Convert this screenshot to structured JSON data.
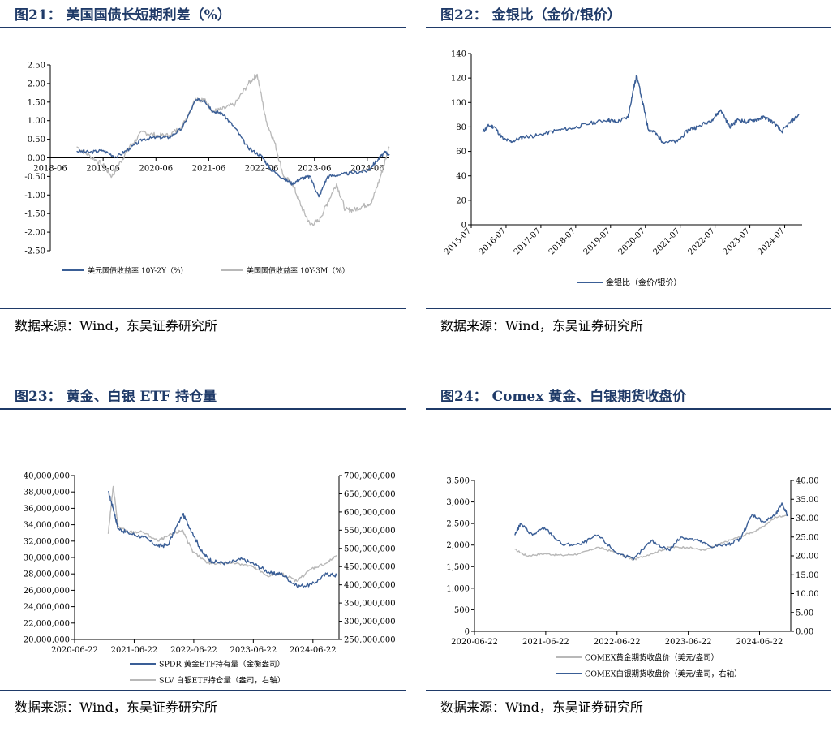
{
  "colors": {
    "primary": "#3a5e96",
    "secondary": "#b8b8b8",
    "title": "#1f3a68"
  },
  "panels": [
    {
      "title": "图21：  美国国债长短期利差（%）",
      "source": "数据来源：Wind，东吴证券研究所"
    },
    {
      "title": "图22：  金银比（金价/银价）",
      "source": "数据来源：Wind，东吴证券研究所"
    },
    {
      "title": "图23：  黄金、白银 ETF 持仓量",
      "source": "数据来源：Wind，东吴证券研究所"
    },
    {
      "title": "图24：  Comex 黄金、白银期货收盘价",
      "source": "数据来源：Wind，东吴证券研究所"
    }
  ],
  "chart_data": [
    {
      "type": "line",
      "title": "美国国债长短期利差（%）",
      "x_ticks": [
        "2018-06",
        "2019-06",
        "2020-06",
        "2021-06",
        "2022-06",
        "2023-06",
        "2024-06"
      ],
      "y_ticks": [
        "2.50",
        "2.00",
        "1.50",
        "1.00",
        "0.50",
        "0.00",
        "-0.50",
        "-1.00",
        "-1.50",
        "-2.00",
        "-2.50"
      ],
      "ylim": [
        -2.5,
        2.5
      ],
      "xlim": [
        "2018-06",
        "2024-11"
      ],
      "legend_position": "bottom",
      "series": [
        {
          "name": "美元国债收益率 10Y-2Y（%）",
          "color": "#3a5e96",
          "x": [
            "2018-12",
            "2019-03",
            "2019-06",
            "2019-09",
            "2019-12",
            "2020-03",
            "2020-06",
            "2020-09",
            "2020-12",
            "2021-03",
            "2021-05",
            "2021-07",
            "2021-09",
            "2021-12",
            "2022-03",
            "2022-06",
            "2022-08",
            "2022-11",
            "2023-01",
            "2023-03",
            "2023-05",
            "2023-07",
            "2023-09",
            "2023-12",
            "2024-03",
            "2024-06",
            "2024-08",
            "2024-10",
            "2024-11"
          ],
          "values": [
            0.18,
            0.15,
            0.2,
            0.02,
            0.25,
            0.5,
            0.55,
            0.55,
            0.8,
            1.55,
            1.55,
            1.25,
            1.2,
            0.8,
            0.25,
            0.05,
            -0.3,
            -0.55,
            -0.7,
            -0.55,
            -0.5,
            -1.05,
            -0.5,
            -0.45,
            -0.4,
            -0.35,
            -0.1,
            0.15,
            0.1
          ]
        },
        {
          "name": "美国国债收益率 10Y-3M（%）",
          "color": "#b8b8b8",
          "x": [
            "2018-12",
            "2019-03",
            "2019-06",
            "2019-08",
            "2019-10",
            "2019-12",
            "2020-03",
            "2020-06",
            "2020-09",
            "2020-12",
            "2021-03",
            "2021-05",
            "2021-07",
            "2021-09",
            "2021-12",
            "2022-03",
            "2022-05",
            "2022-07",
            "2022-09",
            "2022-11",
            "2023-01",
            "2023-03",
            "2023-05",
            "2023-07",
            "2023-09",
            "2023-11",
            "2024-01",
            "2024-03",
            "2024-05",
            "2024-07",
            "2024-09",
            "2024-11"
          ],
          "values": [
            0.3,
            0.05,
            -0.2,
            -0.5,
            -0.1,
            0.3,
            0.7,
            0.6,
            0.6,
            0.85,
            1.6,
            1.55,
            1.25,
            1.3,
            1.45,
            2.0,
            2.25,
            1.0,
            0.4,
            -0.5,
            -0.7,
            -1.3,
            -1.8,
            -1.7,
            -1.2,
            -0.7,
            -1.4,
            -1.4,
            -1.3,
            -1.2,
            -0.5,
            0.3
          ]
        }
      ]
    },
    {
      "type": "line",
      "title": "金银比（金价/银价）",
      "x_ticks": [
        "2015-07",
        "2016-07",
        "2017-07",
        "2018-07",
        "2019-07",
        "2020-07",
        "2021-07",
        "2022-07",
        "2023-07",
        "2024-07"
      ],
      "y_ticks": [
        "140",
        "120",
        "100",
        "80",
        "60",
        "40",
        "20",
        "0"
      ],
      "ylim": [
        0,
        140
      ],
      "xlim": [
        "2015-07",
        "2025-01"
      ],
      "legend_position": "bottom",
      "series": [
        {
          "name": "金银比（金价/银价）",
          "color": "#3a5e96",
          "x": [
            "2015-11",
            "2016-01",
            "2016-03",
            "2016-06",
            "2016-09",
            "2017-01",
            "2017-06",
            "2017-12",
            "2018-06",
            "2018-12",
            "2019-06",
            "2019-09",
            "2020-01",
            "2020-03",
            "2020-04",
            "2020-06",
            "2020-08",
            "2020-10",
            "2021-01",
            "2021-06",
            "2021-10",
            "2022-01",
            "2022-06",
            "2022-09",
            "2022-12",
            "2023-03",
            "2023-06",
            "2023-09",
            "2023-12",
            "2024-03",
            "2024-06",
            "2024-09",
            "2024-12"
          ],
          "values": [
            76,
            81,
            80,
            70,
            68,
            72,
            73,
            77,
            79,
            83,
            86,
            84,
            88,
            112,
            122,
            101,
            78,
            76,
            68,
            68,
            78,
            80,
            86,
            94,
            80,
            86,
            84,
            86,
            88,
            84,
            76,
            84,
            90
          ]
        }
      ]
    },
    {
      "type": "line",
      "title": "黄金、白银 ETF 持仓量",
      "x_ticks": [
        "2020-06-22",
        "2021-06-22",
        "2022-06-22",
        "2023-06-22",
        "2024-06-22"
      ],
      "y_ticks_left": [
        "40,000,000",
        "38,000,000",
        "36,000,000",
        "34,000,000",
        "32,000,000",
        "30,000,000",
        "28,000,000",
        "26,000,000",
        "24,000,000",
        "22,000,000",
        "20,000,000"
      ],
      "y_ticks_right": [
        "700,000,000",
        "650,000,000",
        "600,000,000",
        "550,000,000",
        "500,000,000",
        "450,000,000",
        "400,000,000",
        "350,000,000",
        "300,000,000",
        "250,000,000"
      ],
      "ylim_left": [
        20000000,
        40000000
      ],
      "ylim_right": [
        250000000,
        700000000
      ],
      "xlim": [
        "2020-06-22",
        "2024-11-30"
      ],
      "legend_position": "bottom",
      "series": [
        {
          "name": "SPDR 黄金ETF持有量（金衡盎司）",
          "axis": "left",
          "color": "#3a5e96",
          "x": [
            "2021-01",
            "2021-02",
            "2021-03",
            "2021-05",
            "2021-08",
            "2021-11",
            "2022-01",
            "2022-04",
            "2022-06",
            "2022-08",
            "2022-10",
            "2023-01",
            "2023-04",
            "2023-07",
            "2023-10",
            "2023-12",
            "2024-03",
            "2024-06",
            "2024-09",
            "2024-11"
          ],
          "values": [
            38000000,
            36000000,
            33500000,
            33000000,
            32500000,
            31400000,
            31500000,
            35300000,
            33000000,
            30500000,
            29500000,
            29300000,
            29800000,
            29000000,
            28000000,
            28000000,
            26500000,
            26700000,
            28000000,
            27800000
          ]
        },
        {
          "name": "SLV 白银ETF持仓量（盎司，右轴）",
          "axis": "right",
          "color": "#b8b8b8",
          "x": [
            "2021-01",
            "2021-02",
            "2021-03",
            "2021-05",
            "2021-08",
            "2021-11",
            "2022-02",
            "2022-04",
            "2022-06",
            "2022-09",
            "2022-12",
            "2023-03",
            "2023-06",
            "2023-09",
            "2023-12",
            "2024-03",
            "2024-06",
            "2024-09",
            "2024-11"
          ],
          "values": [
            540000000,
            670000000,
            560000000,
            545000000,
            545000000,
            520000000,
            540000000,
            550000000,
            490000000,
            460000000,
            460000000,
            460000000,
            450000000,
            425000000,
            430000000,
            410000000,
            445000000,
            460000000,
            480000000
          ]
        }
      ]
    },
    {
      "type": "line",
      "title": "Comex 黄金、白银期货收盘价",
      "x_ticks": [
        "2020-06-22",
        "2021-06-22",
        "2022-06-22",
        "2023-06-22",
        "2024-06-22"
      ],
      "y_ticks_left": [
        "3,500",
        "3,000",
        "2,500",
        "2,000",
        "1,500",
        "1,000",
        "500",
        "0"
      ],
      "y_ticks_right": [
        "40.00",
        "35.00",
        "30.00",
        "25.00",
        "20.00",
        "15.00",
        "10.00",
        "5.00",
        "0.00"
      ],
      "ylim_left": [
        0,
        3500
      ],
      "ylim_right": [
        0,
        40
      ],
      "xlim": [
        "2020-06-22",
        "2024-11-30"
      ],
      "legend_position": "bottom",
      "series": [
        {
          "name": "COMEX黄金期货收盘价（美元/盎司）",
          "axis": "left",
          "color": "#b8b8b8",
          "x": [
            "2021-01",
            "2021-03",
            "2021-06",
            "2021-09",
            "2021-12",
            "2022-03",
            "2022-06",
            "2022-09",
            "2022-12",
            "2023-03",
            "2023-06",
            "2023-09",
            "2023-12",
            "2024-03",
            "2024-06",
            "2024-09",
            "2024-11"
          ],
          "values": [
            1900,
            1750,
            1800,
            1760,
            1800,
            1950,
            1830,
            1660,
            1800,
            1950,
            1950,
            1880,
            2050,
            2200,
            2350,
            2650,
            2700
          ]
        },
        {
          "name": "COMEX白银期货收盘价（美元/盎司，右轴）",
          "axis": "right",
          "color": "#3a5e96",
          "x": [
            "2021-01",
            "2021-02",
            "2021-04",
            "2021-06",
            "2021-09",
            "2021-12",
            "2022-03",
            "2022-06",
            "2022-09",
            "2022-12",
            "2023-03",
            "2023-05",
            "2023-08",
            "2023-10",
            "2024-01",
            "2024-03",
            "2024-05",
            "2024-07",
            "2024-09",
            "2024-10",
            "2024-11"
          ],
          "values": [
            25.5,
            28.5,
            25.5,
            27.5,
            23,
            23,
            25.5,
            21,
            19,
            24,
            21.5,
            25,
            24,
            22.5,
            23,
            24.5,
            31,
            29,
            31,
            34,
            30.5
          ]
        }
      ]
    }
  ]
}
